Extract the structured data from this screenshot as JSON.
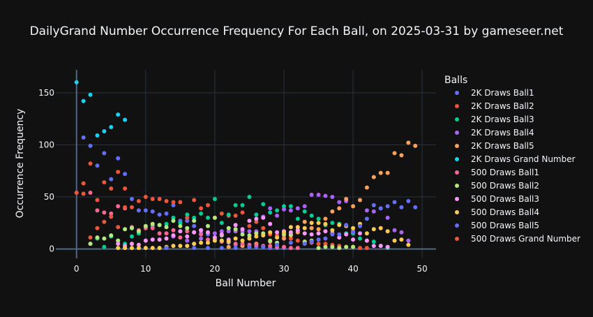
{
  "chart_data": {
    "type": "scatter",
    "title": "DailyGrand Number Occurrence Frequency For Each Ball, on 2025-03-31 by gameseer.net",
    "xlabel": "Ball Number",
    "ylabel": "Occurrence Frequency",
    "xlim": [
      -3,
      52
    ],
    "ylim": [
      -9,
      172
    ],
    "xticks": [
      0,
      10,
      20,
      30,
      40,
      50
    ],
    "yticks": [
      0,
      50,
      100,
      150
    ],
    "grid": true,
    "legend_title": "Balls",
    "legend_position": "right",
    "series": [
      {
        "name": "2K Draws Ball1",
        "color": "#636efa",
        "x": [
          1,
          2,
          3,
          4,
          5,
          6,
          7,
          8,
          9,
          10,
          11,
          12,
          13,
          14,
          15,
          16,
          17,
          18,
          19,
          20,
          21,
          22,
          23,
          24,
          25,
          26,
          27,
          28,
          29,
          30
        ],
        "y": [
          107,
          99,
          80,
          92,
          67,
          87,
          72,
          48,
          37,
          37,
          36,
          33,
          34,
          42,
          27,
          27,
          22,
          15,
          14,
          10,
          8,
          6,
          4,
          3,
          2,
          2,
          2,
          1,
          1,
          1
        ]
      },
      {
        "name": "2K Draws Ball2",
        "color": "#EF553B",
        "x": [
          0,
          1,
          2,
          3,
          4,
          5,
          6,
          7,
          8,
          9,
          10,
          11,
          12,
          13,
          14,
          15,
          16,
          17,
          18,
          19,
          20,
          21,
          22,
          23,
          24,
          25,
          26,
          27,
          28,
          29,
          30,
          31,
          32,
          33,
          34,
          35,
          36,
          37,
          38,
          39,
          40,
          41,
          42
        ],
        "y": [
          54,
          63,
          82,
          47,
          64,
          58,
          74,
          58,
          40,
          46,
          50,
          48,
          48,
          46,
          45,
          45,
          30,
          47,
          39,
          42,
          30,
          34,
          32,
          32,
          35,
          22,
          26,
          20,
          14,
          13,
          12,
          10,
          8,
          7,
          6,
          5,
          5,
          4,
          3,
          2,
          2,
          1,
          1
        ]
      },
      {
        "name": "2K Draws Ball3",
        "color": "#00cc96",
        "x": [
          2,
          3,
          4,
          5,
          6,
          7,
          8,
          9,
          10,
          11,
          12,
          13,
          14,
          15,
          16,
          17,
          18,
          19,
          20,
          21,
          22,
          23,
          24,
          25,
          26,
          27,
          28,
          29,
          30,
          31,
          32,
          33,
          34,
          35,
          36,
          37,
          38,
          39,
          40,
          41,
          42,
          43,
          44,
          45
        ],
        "y": [
          5,
          10,
          2,
          12,
          8,
          5,
          12,
          15,
          21,
          22,
          23,
          24,
          30,
          25,
          33,
          30,
          34,
          30,
          48,
          25,
          33,
          42,
          42,
          50,
          33,
          43,
          35,
          37,
          41,
          41,
          29,
          36,
          32,
          29,
          23,
          25,
          24,
          15,
          15,
          10,
          8,
          7,
          3,
          1
        ]
      },
      {
        "name": "2K Draws Ball4",
        "color": "#ab63fa",
        "x": [
          14,
          16,
          18,
          20,
          21,
          22,
          23,
          24,
          25,
          26,
          27,
          28,
          29,
          30,
          31,
          32,
          33,
          34,
          35,
          36,
          37,
          38,
          39,
          40,
          41,
          42,
          43,
          44,
          45,
          46,
          47,
          48
        ],
        "y": [
          12,
          8,
          10,
          15,
          17,
          17,
          17,
          17,
          17,
          17,
          31,
          39,
          32,
          38,
          37,
          39,
          41,
          52,
          52,
          51,
          50,
          45,
          46,
          17,
          24,
          37,
          36,
          39,
          30,
          18,
          16,
          8
        ]
      },
      {
        "name": "2K Draws Ball5",
        "color": "#FFA15A",
        "x": [
          22,
          24,
          26,
          28,
          30,
          31,
          32,
          33,
          34,
          35,
          36,
          37,
          38,
          39,
          40,
          41,
          42,
          43,
          44,
          45,
          46,
          47,
          48,
          49
        ],
        "y": [
          2,
          3,
          5,
          7,
          10,
          13,
          16,
          26,
          20,
          19,
          29,
          36,
          39,
          48,
          41,
          47,
          59,
          69,
          73,
          73,
          92,
          90,
          102,
          99
        ]
      },
      {
        "name": "2K Draws Grand Number",
        "color": "#19d3f3",
        "x": [
          0,
          1,
          2,
          3,
          4,
          5,
          6,
          7
        ],
        "y": [
          160,
          142,
          148,
          109,
          113,
          117,
          129,
          124
        ]
      },
      {
        "name": "500 Draws Ball1",
        "color": "#FF6692",
        "x": [
          2,
          3,
          4,
          5,
          6,
          7,
          8,
          9,
          10,
          11,
          12,
          13,
          14,
          15,
          16,
          17,
          18,
          19,
          20,
          21,
          22,
          23,
          24,
          25,
          26,
          27,
          28,
          29,
          30,
          31,
          32
        ],
        "y": [
          54,
          37,
          35,
          34,
          41,
          39,
          21,
          18,
          20,
          20,
          15,
          15,
          18,
          11,
          17,
          16,
          14,
          9,
          11,
          7,
          8,
          5,
          5,
          4,
          4,
          3,
          3,
          2,
          2,
          1,
          1
        ]
      },
      {
        "name": "500 Draws Ball2",
        "color": "#B6E880",
        "x": [
          2,
          3,
          4,
          5,
          6,
          7,
          8,
          9,
          10,
          11,
          12,
          13,
          14,
          15,
          16,
          17,
          18,
          19,
          20,
          21,
          22,
          23,
          24,
          25,
          26,
          27,
          28,
          29,
          30,
          31,
          32,
          33,
          34,
          35,
          36,
          37,
          38,
          39,
          40
        ],
        "y": [
          5,
          11,
          10,
          13,
          8,
          19,
          20,
          17,
          22,
          24,
          23,
          21,
          27,
          22,
          20,
          27,
          18,
          22,
          30,
          13,
          20,
          19,
          14,
          13,
          15,
          15,
          8,
          6,
          14,
          14,
          18,
          7,
          8,
          1,
          2,
          2,
          1,
          2,
          2
        ]
      },
      {
        "name": "500 Draws Ball3",
        "color": "#FF97FF",
        "x": [
          6,
          7,
          8,
          9,
          10,
          11,
          12,
          13,
          14,
          15,
          16,
          17,
          18,
          19,
          20,
          21,
          22,
          23,
          24,
          25,
          26,
          27,
          28,
          29,
          30,
          31,
          32,
          33,
          34,
          35,
          36,
          37,
          38,
          39,
          40,
          41,
          42,
          43,
          44,
          45
        ],
        "y": [
          5,
          3,
          5,
          4,
          8,
          9,
          9,
          10,
          13,
          17,
          12,
          16,
          18,
          16,
          11,
          14,
          9,
          23,
          19,
          27,
          29,
          30,
          24,
          16,
          17,
          16,
          18,
          15,
          14,
          15,
          17,
          15,
          11,
          14,
          9,
          15,
          8,
          3,
          3,
          2
        ]
      },
      {
        "name": "500 Draws Ball4",
        "color": "#FECB52",
        "x": [
          6,
          7,
          8,
          9,
          10,
          11,
          12,
          13,
          14,
          15,
          16,
          17,
          18,
          19,
          20,
          21,
          22,
          23,
          24,
          25,
          26,
          27,
          28,
          29,
          30,
          31,
          32,
          33,
          34,
          35,
          36,
          37,
          38,
          39,
          40,
          41,
          42,
          43,
          44,
          45,
          46,
          47,
          48
        ],
        "y": [
          1,
          1,
          1,
          1,
          1,
          1,
          1,
          2,
          3,
          3,
          3,
          5,
          6,
          6,
          8,
          8,
          7,
          10,
          8,
          10,
          12,
          13,
          16,
          11,
          16,
          21,
          21,
          20,
          25,
          25,
          24,
          18,
          23,
          22,
          20,
          24,
          15,
          19,
          20,
          17,
          8,
          9,
          4
        ]
      },
      {
        "name": "500 Draws Ball5",
        "color": "#636efa",
        "x": [
          13,
          17,
          19,
          21,
          23,
          25,
          27,
          29,
          31,
          33,
          34,
          35,
          36,
          37,
          38,
          39,
          40,
          41,
          42,
          43,
          44,
          45,
          46,
          47,
          48,
          49
        ],
        "y": [
          1,
          1,
          1,
          1,
          1,
          2,
          2,
          4,
          6,
          5,
          7,
          9,
          10,
          14,
          14,
          23,
          16,
          22,
          29,
          42,
          39,
          41,
          45,
          40,
          46,
          40
        ]
      },
      {
        "name": "500 Draws Grand Number",
        "color": "#EF553B",
        "x": [
          0,
          1,
          2,
          3,
          4,
          5,
          6,
          7
        ],
        "y": [
          54,
          53,
          11,
          20,
          26,
          31,
          21,
          40
        ]
      }
    ]
  }
}
